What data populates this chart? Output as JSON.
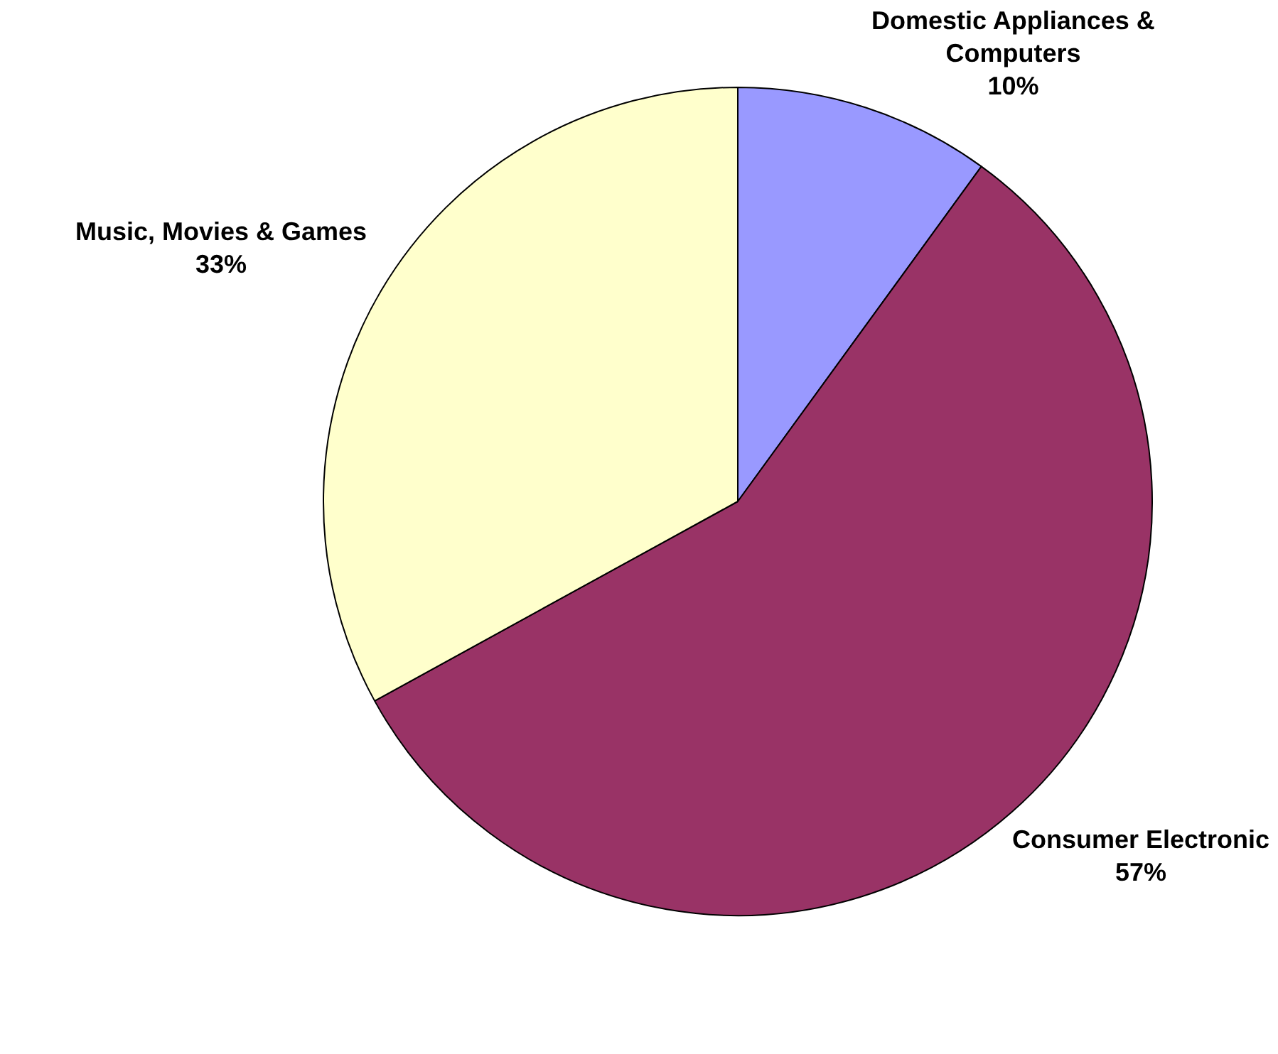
{
  "chart_data": {
    "type": "pie",
    "categories": [
      "Domestic Appliances & Computers",
      "Consumer Electronic",
      "Music, Movies & Games"
    ],
    "values": [
      10,
      57,
      33
    ],
    "colors": [
      "#9999ff",
      "#993366",
      "#ffffcc"
    ],
    "value_labels": [
      "10%",
      "57%",
      "33%"
    ],
    "legend": false
  }
}
